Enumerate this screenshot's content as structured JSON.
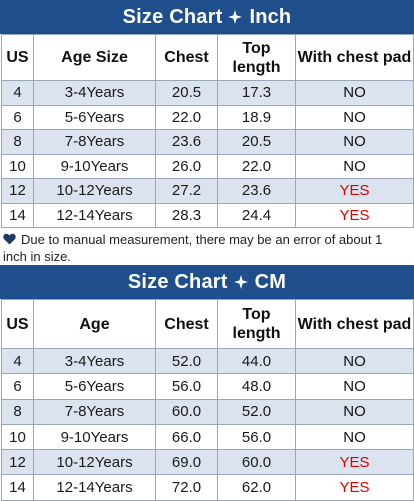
{
  "inch_chart": {
    "title_left": "Size Chart",
    "title_right": "Inch",
    "headers": {
      "us": "US",
      "age": "Age Size",
      "chest": "Chest",
      "top_length": "Top length",
      "chest_pad": "With chest pad"
    },
    "rows": [
      {
        "us": "4",
        "age": "3-4Years",
        "chest": "20.5",
        "top_length": "17.3",
        "chest_pad": "NO"
      },
      {
        "us": "6",
        "age": "5-6Years",
        "chest": "22.0",
        "top_length": "18.9",
        "chest_pad": "NO"
      },
      {
        "us": "8",
        "age": "7-8Years",
        "chest": "23.6",
        "top_length": "20.5",
        "chest_pad": "NO"
      },
      {
        "us": "10",
        "age": "9-10Years",
        "chest": "26.0",
        "top_length": "22.0",
        "chest_pad": "NO"
      },
      {
        "us": "12",
        "age": "10-12Years",
        "chest": "27.2",
        "top_length": "23.6",
        "chest_pad": "YES"
      },
      {
        "us": "14",
        "age": "12-14Years",
        "chest": "28.3",
        "top_length": "24.4",
        "chest_pad": "YES"
      }
    ]
  },
  "note": {
    "icon": "heart-icon",
    "text": "Due to manual measurement, there may be an error of about 1 inch in size."
  },
  "cm_chart": {
    "title_left": "Size Chart",
    "title_right": "CM",
    "headers": {
      "us": "US",
      "age": "Age",
      "chest": "Chest",
      "top_length": "Top length",
      "chest_pad": "With chest pad"
    },
    "rows": [
      {
        "us": "4",
        "age": "3-4Years",
        "chest": "52.0",
        "top_length": "44.0",
        "chest_pad": "NO"
      },
      {
        "us": "6",
        "age": "5-6Years",
        "chest": "56.0",
        "top_length": "48.0",
        "chest_pad": "NO"
      },
      {
        "us": "8",
        "age": "7-8Years",
        "chest": "60.0",
        "top_length": "52.0",
        "chest_pad": "NO"
      },
      {
        "us": "10",
        "age": "9-10Years",
        "chest": "66.0",
        "top_length": "56.0",
        "chest_pad": "NO"
      },
      {
        "us": "12",
        "age": "10-12Years",
        "chest": "69.0",
        "top_length": "60.0",
        "chest_pad": "YES"
      },
      {
        "us": "14",
        "age": "12-14Years",
        "chest": "72.0",
        "top_length": "62.0",
        "chest_pad": "YES"
      }
    ]
  },
  "colors": {
    "title_bar": "#1f4e8c",
    "alt_row": "#dbe3ee",
    "yes_text": "#e00000"
  }
}
